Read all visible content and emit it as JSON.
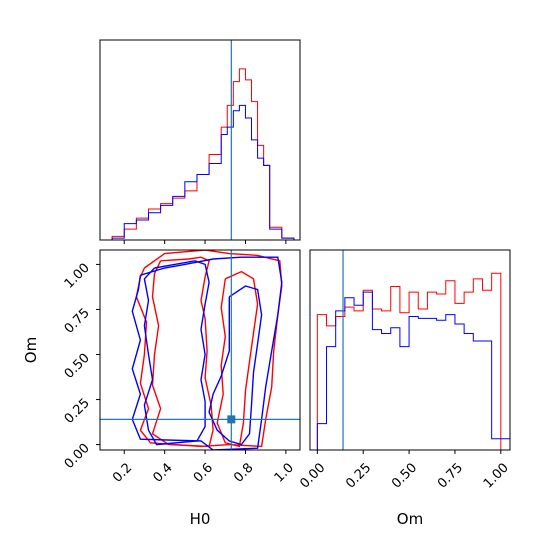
{
  "chart_data": [
    {
      "panel": "H0 marginal histogram",
      "type": "histogram-step",
      "xlim": [
        0.08,
        1.07
      ],
      "x_bins": [
        0.14,
        0.2,
        0.26,
        0.32,
        0.38,
        0.44,
        0.5,
        0.56,
        0.62,
        0.68,
        0.71,
        0.74,
        0.77,
        0.8,
        0.83,
        0.86,
        0.89,
        0.92,
        0.98,
        1.04
      ],
      "ylim": [
        0,
        1
      ],
      "truth_line_x": 0.73,
      "axis_labels_shown": false,
      "series": [
        {
          "color": "#ff0000",
          "values": [
            0.02,
            0.06,
            0.12,
            0.17,
            0.2,
            0.23,
            0.27,
            0.36,
            0.47,
            0.62,
            0.74,
            0.87,
            0.94,
            0.88,
            0.76,
            0.52,
            0.41,
            0.07,
            0.01
          ]
        },
        {
          "color": "#0000ff",
          "values": [
            0.01,
            0.09,
            0.11,
            0.15,
            0.19,
            0.24,
            0.32,
            0.36,
            0.42,
            0.58,
            0.62,
            0.71,
            0.74,
            0.67,
            0.55,
            0.45,
            0.41,
            0.06,
            0.01
          ]
        }
      ]
    },
    {
      "panel": "H0 vs Om 2D contours",
      "type": "contour",
      "xlim": [
        0.08,
        1.07
      ],
      "ylim": [
        -0.03,
        1.08
      ],
      "xlabel": "H0",
      "ylabel": "Om",
      "x_ticks": [
        "0.2",
        "0.4",
        "0.6",
        "0.8",
        "1.0"
      ],
      "x_tick_values": [
        0.2,
        0.4,
        0.6,
        0.8,
        1.0
      ],
      "y_ticks": [
        "0.00",
        "0.25",
        "0.50",
        "0.75",
        "1.00"
      ],
      "y_tick_values": [
        0.0,
        0.25,
        0.5,
        0.75,
        1.0
      ],
      "truth_point": [
        0.73,
        0.14
      ],
      "series": [
        {
          "color": "#ff0000",
          "contours": [
            [
              [
                0.38,
                1.02
              ],
              [
                0.52,
                1.03
              ],
              [
                0.58,
                1.04
              ],
              [
                0.62,
                1.02
              ],
              [
                0.6,
                0.93
              ],
              [
                0.58,
                0.8
              ],
              [
                0.6,
                0.7
              ],
              [
                0.61,
                0.52
              ],
              [
                0.6,
                0.37
              ],
              [
                0.63,
                0.22
              ],
              [
                0.64,
                0.08
              ],
              [
                0.62,
                -0.01
              ],
              [
                0.42,
                0.0
              ],
              [
                0.34,
                0.06
              ],
              [
                0.38,
                0.2
              ],
              [
                0.34,
                0.33
              ],
              [
                0.35,
                0.5
              ],
              [
                0.37,
                0.66
              ],
              [
                0.34,
                0.82
              ],
              [
                0.35,
                0.95
              ],
              [
                0.38,
                1.02
              ]
            ],
            [
              [
                0.3,
                0.98
              ],
              [
                0.4,
                1.06
              ],
              [
                0.6,
                1.08
              ],
              [
                0.72,
                1.06
              ],
              [
                0.86,
                1.05
              ],
              [
                0.97,
                1.02
              ],
              [
                0.98,
                0.88
              ],
              [
                0.96,
                0.72
              ],
              [
                0.94,
                0.52
              ],
              [
                0.93,
                0.32
              ],
              [
                0.9,
                0.14
              ],
              [
                0.88,
                -0.01
              ],
              [
                0.72,
                0.0
              ],
              [
                0.58,
                -0.01
              ],
              [
                0.33,
                0.01
              ],
              [
                0.28,
                0.08
              ],
              [
                0.32,
                0.2
              ],
              [
                0.28,
                0.34
              ],
              [
                0.3,
                0.5
              ],
              [
                0.31,
                0.68
              ],
              [
                0.26,
                0.82
              ],
              [
                0.28,
                0.93
              ],
              [
                0.3,
                0.98
              ]
            ],
            [
              [
                0.7,
                0.92
              ],
              [
                0.78,
                0.96
              ],
              [
                0.84,
                0.92
              ],
              [
                0.86,
                0.78
              ],
              [
                0.84,
                0.62
              ],
              [
                0.82,
                0.46
              ],
              [
                0.8,
                0.3
              ],
              [
                0.79,
                0.12
              ],
              [
                0.77,
                -0.01
              ],
              [
                0.7,
                0.01
              ],
              [
                0.66,
                0.12
              ],
              [
                0.69,
                0.28
              ],
              [
                0.68,
                0.44
              ],
              [
                0.7,
                0.6
              ],
              [
                0.68,
                0.76
              ],
              [
                0.7,
                0.92
              ]
            ]
          ]
        },
        {
          "color": "#0000ff",
          "contours": [
            [
              [
                0.35,
                0.98
              ],
              [
                0.45,
                1.0
              ],
              [
                0.55,
                1.02
              ],
              [
                0.6,
                1.0
              ],
              [
                0.62,
                0.9
              ],
              [
                0.6,
                0.78
              ],
              [
                0.58,
                0.64
              ],
              [
                0.6,
                0.5
              ],
              [
                0.58,
                0.36
              ],
              [
                0.6,
                0.24
              ],
              [
                0.6,
                0.1
              ],
              [
                0.56,
                0.02
              ],
              [
                0.36,
                0.0
              ],
              [
                0.32,
                0.08
              ],
              [
                0.3,
                0.22
              ],
              [
                0.34,
                0.36
              ],
              [
                0.32,
                0.5
              ],
              [
                0.3,
                0.66
              ],
              [
                0.32,
                0.8
              ],
              [
                0.3,
                0.92
              ],
              [
                0.35,
                0.98
              ]
            ],
            [
              [
                0.28,
                0.94
              ],
              [
                0.4,
                0.98
              ],
              [
                0.5,
                1.0
              ],
              [
                0.64,
                1.03
              ],
              [
                0.78,
                1.04
              ],
              [
                0.96,
                1.04
              ],
              [
                0.98,
                0.9
              ],
              [
                0.96,
                0.72
              ],
              [
                0.93,
                0.52
              ],
              [
                0.9,
                0.32
              ],
              [
                0.88,
                0.14
              ],
              [
                0.86,
                -0.02
              ],
              [
                0.64,
                -0.03
              ],
              [
                0.58,
                0.02
              ],
              [
                0.28,
                0.03
              ],
              [
                0.24,
                0.14
              ],
              [
                0.28,
                0.28
              ],
              [
                0.24,
                0.42
              ],
              [
                0.28,
                0.58
              ],
              [
                0.24,
                0.74
              ],
              [
                0.27,
                0.86
              ],
              [
                0.28,
                0.94
              ]
            ],
            [
              [
                0.72,
                0.82
              ],
              [
                0.8,
                0.88
              ],
              [
                0.86,
                0.86
              ],
              [
                0.88,
                0.72
              ],
              [
                0.86,
                0.56
              ],
              [
                0.84,
                0.4
              ],
              [
                0.83,
                0.22
              ],
              [
                0.82,
                0.06
              ],
              [
                0.78,
                0.0
              ],
              [
                0.72,
                0.02
              ],
              [
                0.66,
                0.08
              ],
              [
                0.62,
                0.18
              ],
              [
                0.64,
                0.28
              ],
              [
                0.68,
                0.38
              ],
              [
                0.72,
                0.52
              ],
              [
                0.72,
                0.66
              ],
              [
                0.72,
                0.82
              ]
            ]
          ]
        }
      ]
    },
    {
      "panel": "Om marginal histogram",
      "type": "histogram-step",
      "xlim": [
        -0.04,
        1.05
      ],
      "ylim": [
        0,
        1
      ],
      "xlabel": "Om",
      "x_ticks": [
        "0.00",
        "0.25",
        "0.50",
        "0.75",
        "1.00"
      ],
      "x_tick_values": [
        0.0,
        0.25,
        0.5,
        0.75,
        1.0
      ],
      "x_bins": [
        0.0,
        0.05,
        0.1,
        0.15,
        0.2,
        0.25,
        0.3,
        0.35,
        0.4,
        0.45,
        0.5,
        0.55,
        0.6,
        0.65,
        0.7,
        0.75,
        0.8,
        0.85,
        0.9,
        0.95,
        1.0,
        1.05
      ],
      "truth_line_x": 0.14,
      "series": [
        {
          "color": "#ff0000",
          "values": [
            0.72,
            0.66,
            0.71,
            0.76,
            0.74,
            0.85,
            0.75,
            0.74,
            0.87,
            0.73,
            0.84,
            0.75,
            0.84,
            0.83,
            0.9,
            0.78,
            0.84,
            0.91,
            0.85,
            0.94,
            0.0
          ]
        },
        {
          "color": "#0000ff",
          "values": [
            0.14,
            0.55,
            0.74,
            0.81,
            0.77,
            0.84,
            0.64,
            0.62,
            0.65,
            0.55,
            0.71,
            0.7,
            0.7,
            0.69,
            0.72,
            0.67,
            0.62,
            0.58,
            0.58,
            0.06,
            0.06
          ]
        }
      ]
    }
  ],
  "colors": {
    "truth": "#1f77b4",
    "axes": "#000000"
  }
}
